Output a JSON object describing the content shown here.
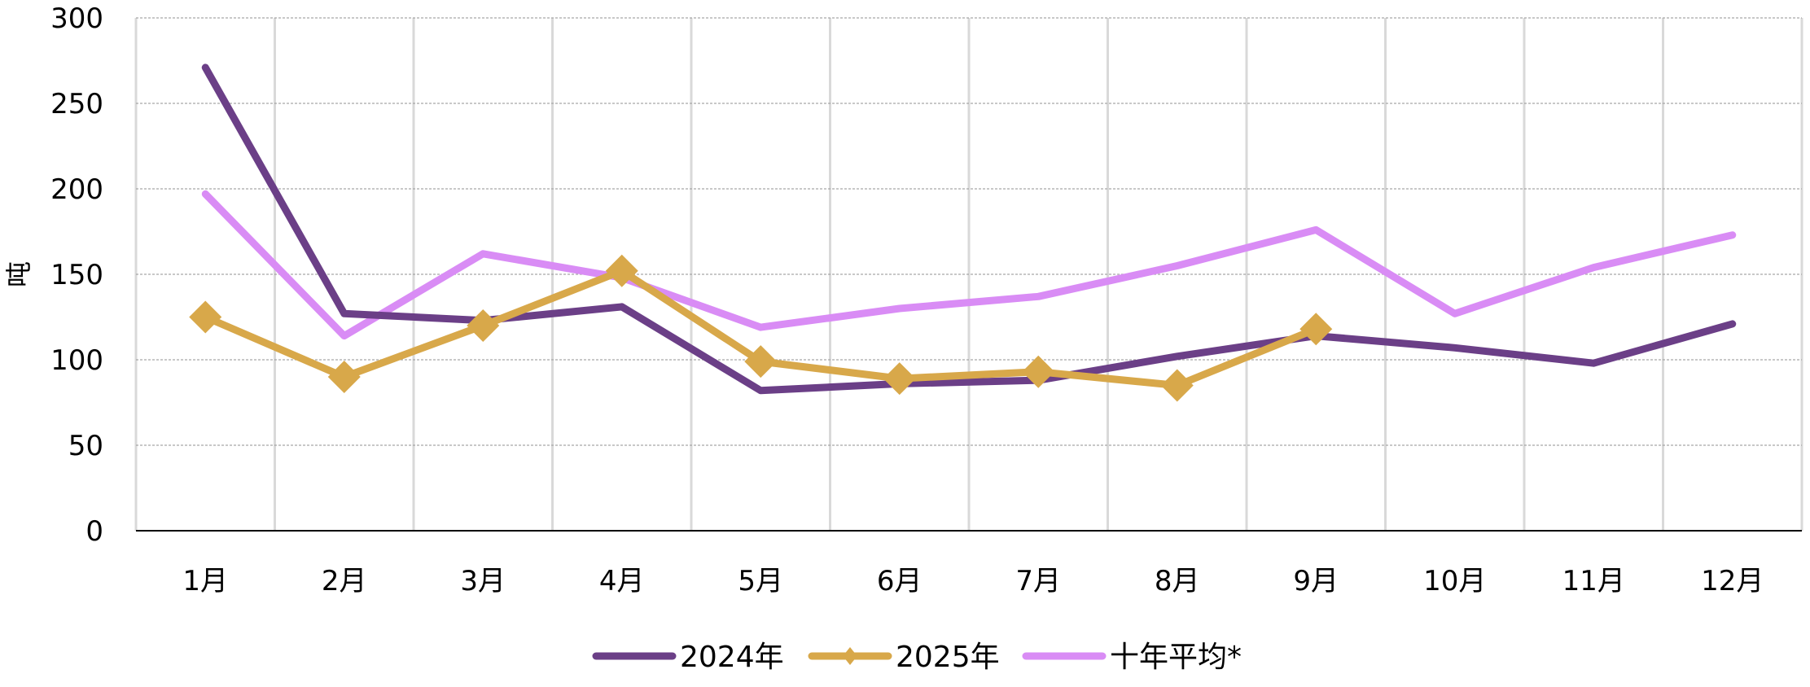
{
  "chart_data": {
    "type": "line",
    "title": "",
    "xlabel": "",
    "ylabel": "吨",
    "ylim": [
      0,
      300
    ],
    "yticks": [
      0,
      50,
      100,
      150,
      200,
      250,
      300
    ],
    "grid": true,
    "legend_position": "bottom",
    "categories": [
      "1月",
      "2月",
      "3月",
      "4月",
      "5月",
      "6月",
      "7月",
      "8月",
      "9月",
      "10月",
      "11月",
      "12月"
    ],
    "series": [
      {
        "name": "2024年",
        "color": "#6b3f87",
        "marker": "none",
        "values": [
          271,
          127,
          123,
          131,
          82,
          86,
          88,
          102,
          114,
          107,
          98,
          121
        ]
      },
      {
        "name": "2025年",
        "color": "#d8a84a",
        "marker": "diamond",
        "values": [
          125,
          90,
          120,
          152,
          99,
          89,
          93,
          85,
          118,
          null,
          null,
          null
        ]
      },
      {
        "name": "十年平均*",
        "color": "#d98cf5",
        "marker": "none",
        "values": [
          197,
          114,
          162,
          148,
          119,
          130,
          137,
          155,
          176,
          127,
          154,
          173
        ]
      }
    ]
  }
}
